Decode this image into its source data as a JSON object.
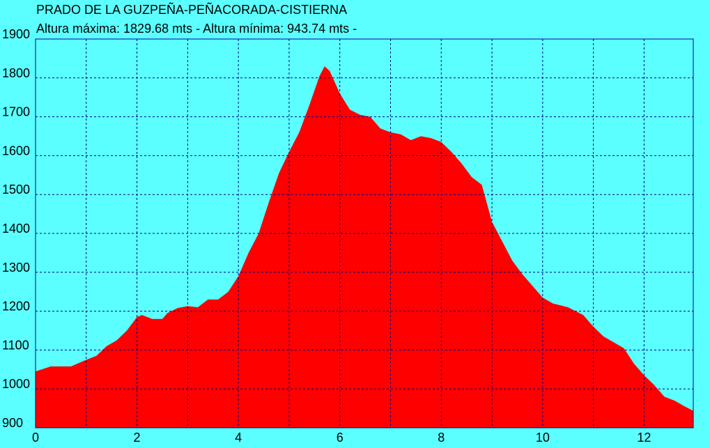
{
  "chart_data": {
    "type": "area",
    "title": "PRADO DE LA GUZPEÑA-PEÑACORADA-CISTIERNA",
    "subtitle": "Altura máxima: 1829.68 mts - Altura mínima: 943.74 mts -",
    "color": "#ff0000",
    "grid": true,
    "x": [
      0,
      0.3,
      0.7,
      1.0,
      1.2,
      1.4,
      1.6,
      1.8,
      2.0,
      2.1,
      2.3,
      2.5,
      2.6,
      2.8,
      3.0,
      3.2,
      3.4,
      3.6,
      3.8,
      4.0,
      4.2,
      4.4,
      4.6,
      4.8,
      5.0,
      5.2,
      5.4,
      5.6,
      5.7,
      5.8,
      6.0,
      6.2,
      6.4,
      6.6,
      6.8,
      7.0,
      7.2,
      7.4,
      7.6,
      7.8,
      8.0,
      8.2,
      8.4,
      8.6,
      8.8,
      9.0,
      9.2,
      9.4,
      9.6,
      9.8,
      10.0,
      10.2,
      10.5,
      10.8,
      11.0,
      11.2,
      11.4,
      11.6,
      11.8,
      12.0,
      12.2,
      12.4,
      12.6,
      12.8,
      12.97
    ],
    "values": [
      1045,
      1058,
      1058,
      1075,
      1085,
      1110,
      1125,
      1150,
      1185,
      1190,
      1180,
      1180,
      1195,
      1208,
      1213,
      1210,
      1230,
      1230,
      1250,
      1290,
      1350,
      1400,
      1480,
      1555,
      1610,
      1660,
      1730,
      1805,
      1829.68,
      1818,
      1760,
      1718,
      1705,
      1700,
      1670,
      1660,
      1655,
      1640,
      1650,
      1645,
      1635,
      1610,
      1580,
      1545,
      1525,
      1430,
      1380,
      1330,
      1295,
      1265,
      1235,
      1220,
      1210,
      1190,
      1160,
      1135,
      1120,
      1105,
      1065,
      1035,
      1010,
      980,
      970,
      955,
      943.74
    ],
    "xlim": [
      0,
      12.97
    ],
    "ylim": [
      900,
      1900
    ],
    "xticks": [
      0,
      2,
      4,
      6,
      8,
      10,
      12
    ],
    "xgrid": [
      1,
      2,
      3,
      4,
      5,
      6,
      7,
      8,
      9,
      10,
      11,
      12
    ],
    "yticks": [
      900,
      1000,
      1100,
      1200,
      1300,
      1400,
      1500,
      1600,
      1700,
      1800,
      1900
    ]
  }
}
